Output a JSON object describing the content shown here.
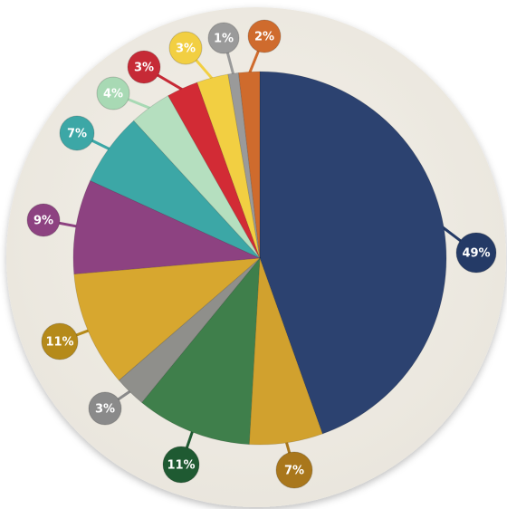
{
  "chart_data": {
    "type": "pie",
    "title": "",
    "slices": [
      {
        "value": 49,
        "label": "49%",
        "color": "#2c4270"
      },
      {
        "value": 7,
        "label": "7%",
        "color": "#d1a12e"
      },
      {
        "value": 11,
        "label": "11%",
        "color": "#3f7f4b"
      },
      {
        "value": 3,
        "label": "3%",
        "color": "#8f8f8b"
      },
      {
        "value": 11,
        "label": "11%",
        "color": "#d7a72f"
      },
      {
        "value": 9,
        "label": "9%",
        "color": "#8d4281"
      },
      {
        "value": 7,
        "label": "7%",
        "color": "#3ca7a6"
      },
      {
        "value": 4,
        "label": "4%",
        "color": "#b5dfbf"
      },
      {
        "value": 3,
        "label": "3%",
        "color": "#d22b35"
      },
      {
        "value": 3,
        "label": "3%",
        "color": "#f2cf42"
      },
      {
        "value": 1,
        "label": "1%",
        "color": "#9a9a9a"
      },
      {
        "value": 2,
        "label": "2%",
        "color": "#cf6b2d"
      }
    ],
    "label_colors": [
      "#243a66",
      "#a9771c",
      "#1f5a32",
      "#8a8a8a",
      "#b58a1a",
      "#8d4281",
      "#3ca7a6",
      "#a8d9b4",
      "#c62a36",
      "#f2cf42",
      "#9a9a9a",
      "#cf6b2d"
    ],
    "label_text_colors": [
      "#ffffff",
      "#ffffff",
      "#ffffff",
      "#ffffff",
      "#ffffff",
      "#ffffff",
      "#ffffff",
      "#ffffff",
      "#ffffff",
      "#ffffff",
      "#ffffff",
      "#ffffff"
    ],
    "start_angle_deg": 0,
    "direction": "clockwise",
    "background_color": "#eeeae2"
  }
}
